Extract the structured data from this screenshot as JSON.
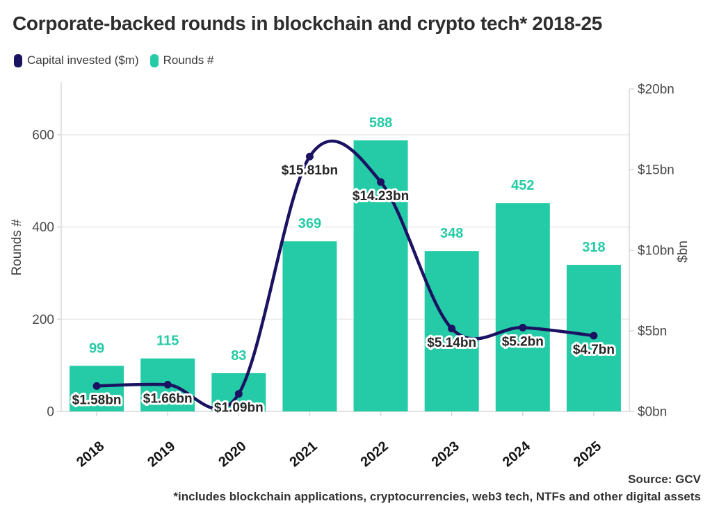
{
  "title": "Corporate-backed rounds in blockchain and crypto tech* 2018-25",
  "legend": {
    "items": [
      {
        "label": "Capital invested ($m)",
        "color": "#1b1262"
      },
      {
        "label": "Rounds #",
        "color": "#25cba6"
      }
    ]
  },
  "footer": {
    "source": "Source: GCV",
    "note": "*includes blockchain applications, cryptocurrencies, web3 tech, NTFs and other digital assets"
  },
  "chart_data": {
    "type": "bar",
    "subtype": "combo-bar-line-dual-axis",
    "categories": [
      "2018",
      "2019",
      "2020",
      "2021",
      "2022",
      "2023",
      "2024",
      "2025"
    ],
    "series": [
      {
        "name": "Rounds #",
        "type": "bar",
        "axis": "left",
        "color": "#25cba6",
        "values": [
          99,
          115,
          83,
          369,
          588,
          348,
          452,
          318
        ],
        "data_labels": [
          "99",
          "115",
          "83",
          "369",
          "588",
          "348",
          "452",
          "318"
        ]
      },
      {
        "name": "Capital invested ($m)",
        "type": "line",
        "axis": "right",
        "color": "#1b1262",
        "values_bn": [
          1.58,
          1.66,
          1.09,
          15.81,
          14.23,
          5.14,
          5.2,
          4.7
        ],
        "data_labels": [
          "$1.58bn",
          "$1.66bn",
          "$1.09bn",
          "$15.81bn",
          "$14.23bn",
          "$5.14bn",
          "$5.2bn",
          "$4.7bn"
        ]
      }
    ],
    "left_axis": {
      "label": "Rounds #",
      "tick_values": [
        0,
        200,
        400,
        600
      ],
      "tick_labels": [
        "0",
        "200",
        "400",
        "600"
      ],
      "range": [
        0,
        711
      ]
    },
    "right_axis": {
      "label": "$bn",
      "tick_values": [
        0,
        5,
        10,
        15,
        20
      ],
      "tick_labels": [
        "$0bn",
        "$5bn",
        "$10bn",
        "$15bn",
        "$20bn"
      ],
      "range": [
        0,
        20.4
      ]
    },
    "grid": "horizontal gridlines at left-axis ticks",
    "legend_position": "top-left",
    "colors": {
      "grid": "#e9e9e9",
      "axis": "#d7d7d7"
    }
  }
}
